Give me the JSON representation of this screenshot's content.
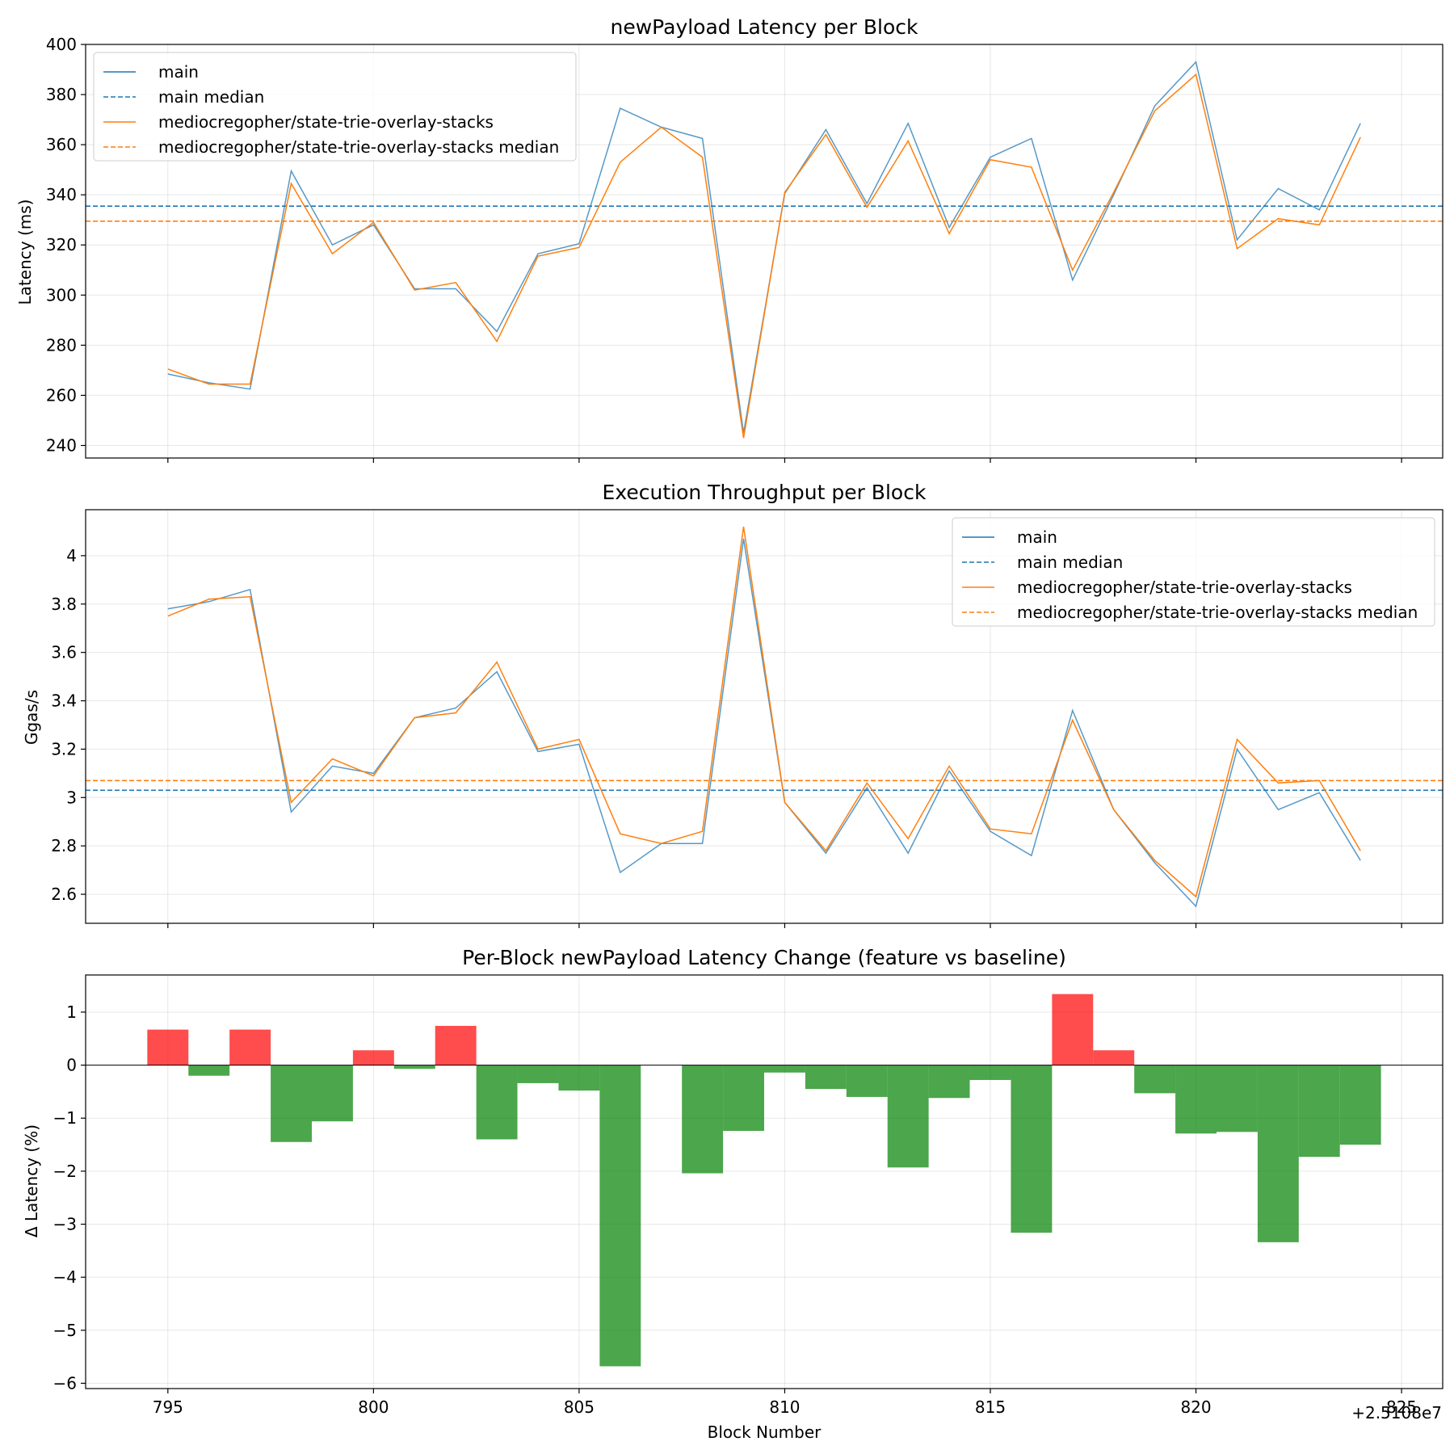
{
  "chart_data": [
    {
      "type": "line",
      "title": "newPayload Latency per Block",
      "xlabel": "",
      "ylabel": "Latency (ms)",
      "xlim": [
        793,
        826
      ],
      "ylim": [
        235,
        400
      ],
      "yticks": [
        240,
        260,
        280,
        300,
        320,
        340,
        360,
        380,
        400
      ],
      "grid": true,
      "legend_position": "top-left",
      "x": [
        795,
        796,
        797,
        798,
        799,
        800,
        801,
        802,
        803,
        804,
        805,
        806,
        807,
        808,
        809,
        810,
        811,
        812,
        813,
        814,
        815,
        816,
        817,
        818,
        819,
        820,
        821,
        822,
        823,
        824
      ],
      "series": [
        {
          "name": "main",
          "color": "#1f77b4",
          "style": "solid",
          "values": [
            268.5,
            265,
            262.5,
            349.5,
            320,
            328,
            302.5,
            302.5,
            285.5,
            316.5,
            320.5,
            374.5,
            367,
            362.5,
            245,
            340.5,
            366,
            336.5,
            368.5,
            327,
            355,
            362.5,
            306,
            340,
            375.5,
            393,
            322,
            342.5,
            334,
            368.5
          ]
        },
        {
          "name": "main median",
          "color": "#1f77b4",
          "style": "dashed",
          "value": 335.5
        },
        {
          "name": "mediocregopher/state-trie-overlay-stacks",
          "color": "#ff7f0e",
          "style": "solid",
          "values": [
            270.5,
            264.5,
            264.5,
            344.5,
            316.5,
            329,
            302,
            305,
            281.5,
            315.5,
            319,
            353,
            367,
            355,
            243,
            341,
            364,
            335,
            361.5,
            324.5,
            354,
            351,
            310,
            341,
            373.5,
            388,
            318.5,
            330.5,
            328,
            363
          ]
        },
        {
          "name": "mediocregopher/state-trie-overlay-stacks median",
          "color": "#ff7f0e",
          "style": "dashed",
          "value": 329.5
        }
      ]
    },
    {
      "type": "line",
      "title": "Execution Throughput per Block",
      "xlabel": "",
      "ylabel": "Ggas/s",
      "xlim": [
        793,
        826
      ],
      "ylim": [
        2.48,
        4.19
      ],
      "yticks": [
        2.6,
        2.8,
        3.0,
        3.2,
        3.4,
        3.6,
        3.8,
        4.0
      ],
      "grid": true,
      "legend_position": "top-right",
      "x": [
        795,
        796,
        797,
        798,
        799,
        800,
        801,
        802,
        803,
        804,
        805,
        806,
        807,
        808,
        809,
        810,
        811,
        812,
        813,
        814,
        815,
        816,
        817,
        818,
        819,
        820,
        821,
        822,
        823,
        824
      ],
      "series": [
        {
          "name": "main",
          "color": "#1f77b4",
          "style": "solid",
          "values": [
            3.78,
            3.81,
            3.86,
            2.94,
            3.13,
            3.1,
            3.33,
            3.37,
            3.52,
            3.19,
            3.22,
            2.69,
            2.81,
            2.81,
            4.07,
            2.98,
            2.77,
            3.04,
            2.77,
            3.11,
            2.86,
            2.76,
            3.36,
            2.95,
            2.73,
            2.55,
            3.2,
            2.95,
            3.02,
            2.74
          ]
        },
        {
          "name": "main median",
          "color": "#1f77b4",
          "style": "dashed",
          "value": 3.03
        },
        {
          "name": "mediocregopher/state-trie-overlay-stacks",
          "color": "#ff7f0e",
          "style": "solid",
          "values": [
            3.75,
            3.82,
            3.83,
            2.98,
            3.16,
            3.09,
            3.33,
            3.35,
            3.56,
            3.2,
            3.24,
            2.85,
            2.81,
            2.86,
            4.12,
            2.98,
            2.78,
            3.06,
            2.83,
            3.13,
            2.87,
            2.85,
            3.32,
            2.95,
            2.74,
            2.59,
            3.24,
            3.06,
            3.07,
            2.78
          ]
        },
        {
          "name": "mediocregopher/state-trie-overlay-stacks median",
          "color": "#ff7f0e",
          "style": "dashed",
          "value": 3.07
        }
      ]
    },
    {
      "type": "bar",
      "title": "Per-Block newPayload Latency Change (feature vs baseline)",
      "xlabel": "Block Number",
      "ylabel": "Δ Latency (%)",
      "xlim": [
        793,
        826
      ],
      "ylim": [
        -6.1,
        1.7
      ],
      "xticks": [
        795,
        800,
        805,
        810,
        815,
        820,
        825
      ],
      "yticks": [
        -6,
        -5,
        -4,
        -3,
        -2,
        -1,
        0,
        1
      ],
      "offset_label": "+2.5108e7",
      "grid": true,
      "positive_color": "#ff0000",
      "negative_color": "#008000",
      "x": [
        795,
        796,
        797,
        798,
        799,
        800,
        801,
        802,
        803,
        804,
        805,
        806,
        807,
        808,
        809,
        810,
        811,
        812,
        813,
        814,
        815,
        816,
        817,
        818,
        819,
        820,
        821,
        822,
        823,
        824
      ],
      "values": [
        0.67,
        -0.2,
        0.67,
        -1.45,
        -1.06,
        0.28,
        -0.07,
        0.74,
        -1.4,
        -0.34,
        -0.48,
        -5.68,
        0,
        -2.04,
        -1.24,
        -0.14,
        -0.45,
        -0.6,
        -1.93,
        -0.62,
        -0.28,
        -3.16,
        1.34,
        0.28,
        -0.53,
        -1.29,
        -1.26,
        -3.34,
        -1.73,
        -1.5
      ]
    }
  ],
  "tick_format": {
    "minus": "−"
  }
}
